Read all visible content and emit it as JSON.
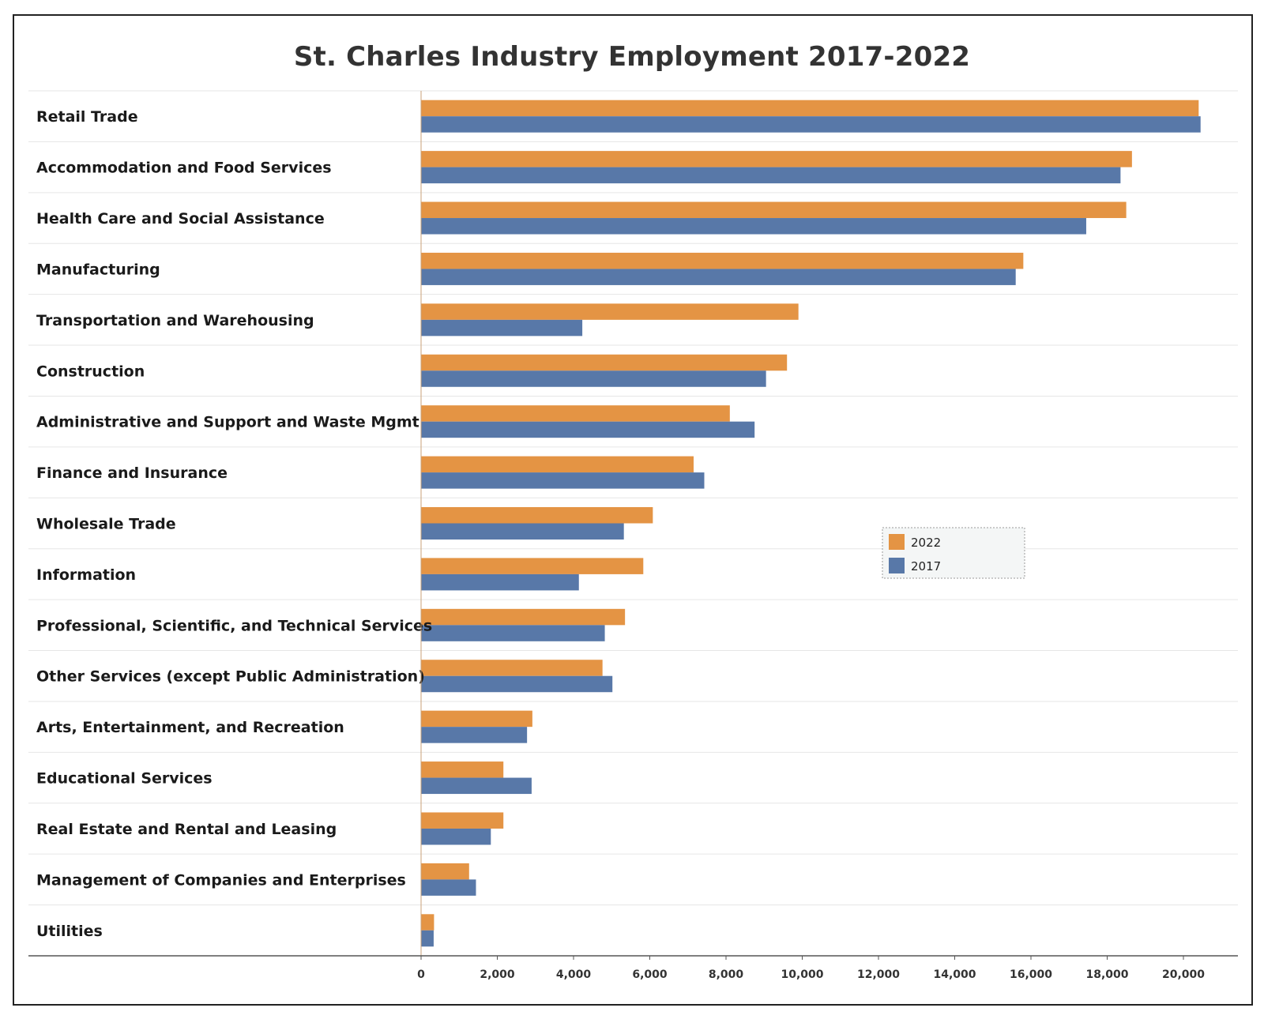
{
  "chart_data": {
    "type": "bar",
    "orientation": "horizontal",
    "title": "St. Charles Industry Employment 2017-2022",
    "xlabel": "",
    "ylabel": "",
    "xlim": [
      0,
      21500
    ],
    "x_ticks": [
      0,
      2000,
      4000,
      6000,
      8000,
      10000,
      12000,
      14000,
      16000,
      18000,
      20000
    ],
    "x_tick_labels": [
      "0",
      "2,000",
      "4,000",
      "6,000",
      "8,000",
      "10,000",
      "12,000",
      "14,000",
      "16,000",
      "18,000",
      "20,000"
    ],
    "grid": "horizontal separators only",
    "legend_position": "middle-right",
    "categories": [
      "Retail Trade",
      "Accommodation and Food Services",
      "Health Care and Social Assistance",
      "Manufacturing",
      "Transportation and Warehousing",
      "Construction",
      "Administrative and Support and Waste Mgmt",
      "Finance and Insurance",
      "Wholesale Trade",
      "Information",
      "Professional, Scientific, and Technical Services",
      "Other Services (except Public Administration)",
      "Arts, Entertainment, and Recreation",
      "Educational Services",
      "Real Estate and Rental and Leasing",
      "Management of Companies and Enterprises",
      "Utilities"
    ],
    "series": [
      {
        "name": "2022",
        "color": "#E49444",
        "values": [
          20400,
          18650,
          18500,
          15800,
          9900,
          9600,
          8100,
          7150,
          6080,
          5830,
          5350,
          4760,
          2920,
          2160,
          2160,
          1260,
          340
        ]
      },
      {
        "name": "2017",
        "color": "#5878A8",
        "values": [
          20450,
          18350,
          17450,
          15600,
          4230,
          9050,
          8750,
          7430,
          5320,
          4140,
          4820,
          5020,
          2780,
          2900,
          1830,
          1440,
          330
        ]
      }
    ]
  }
}
